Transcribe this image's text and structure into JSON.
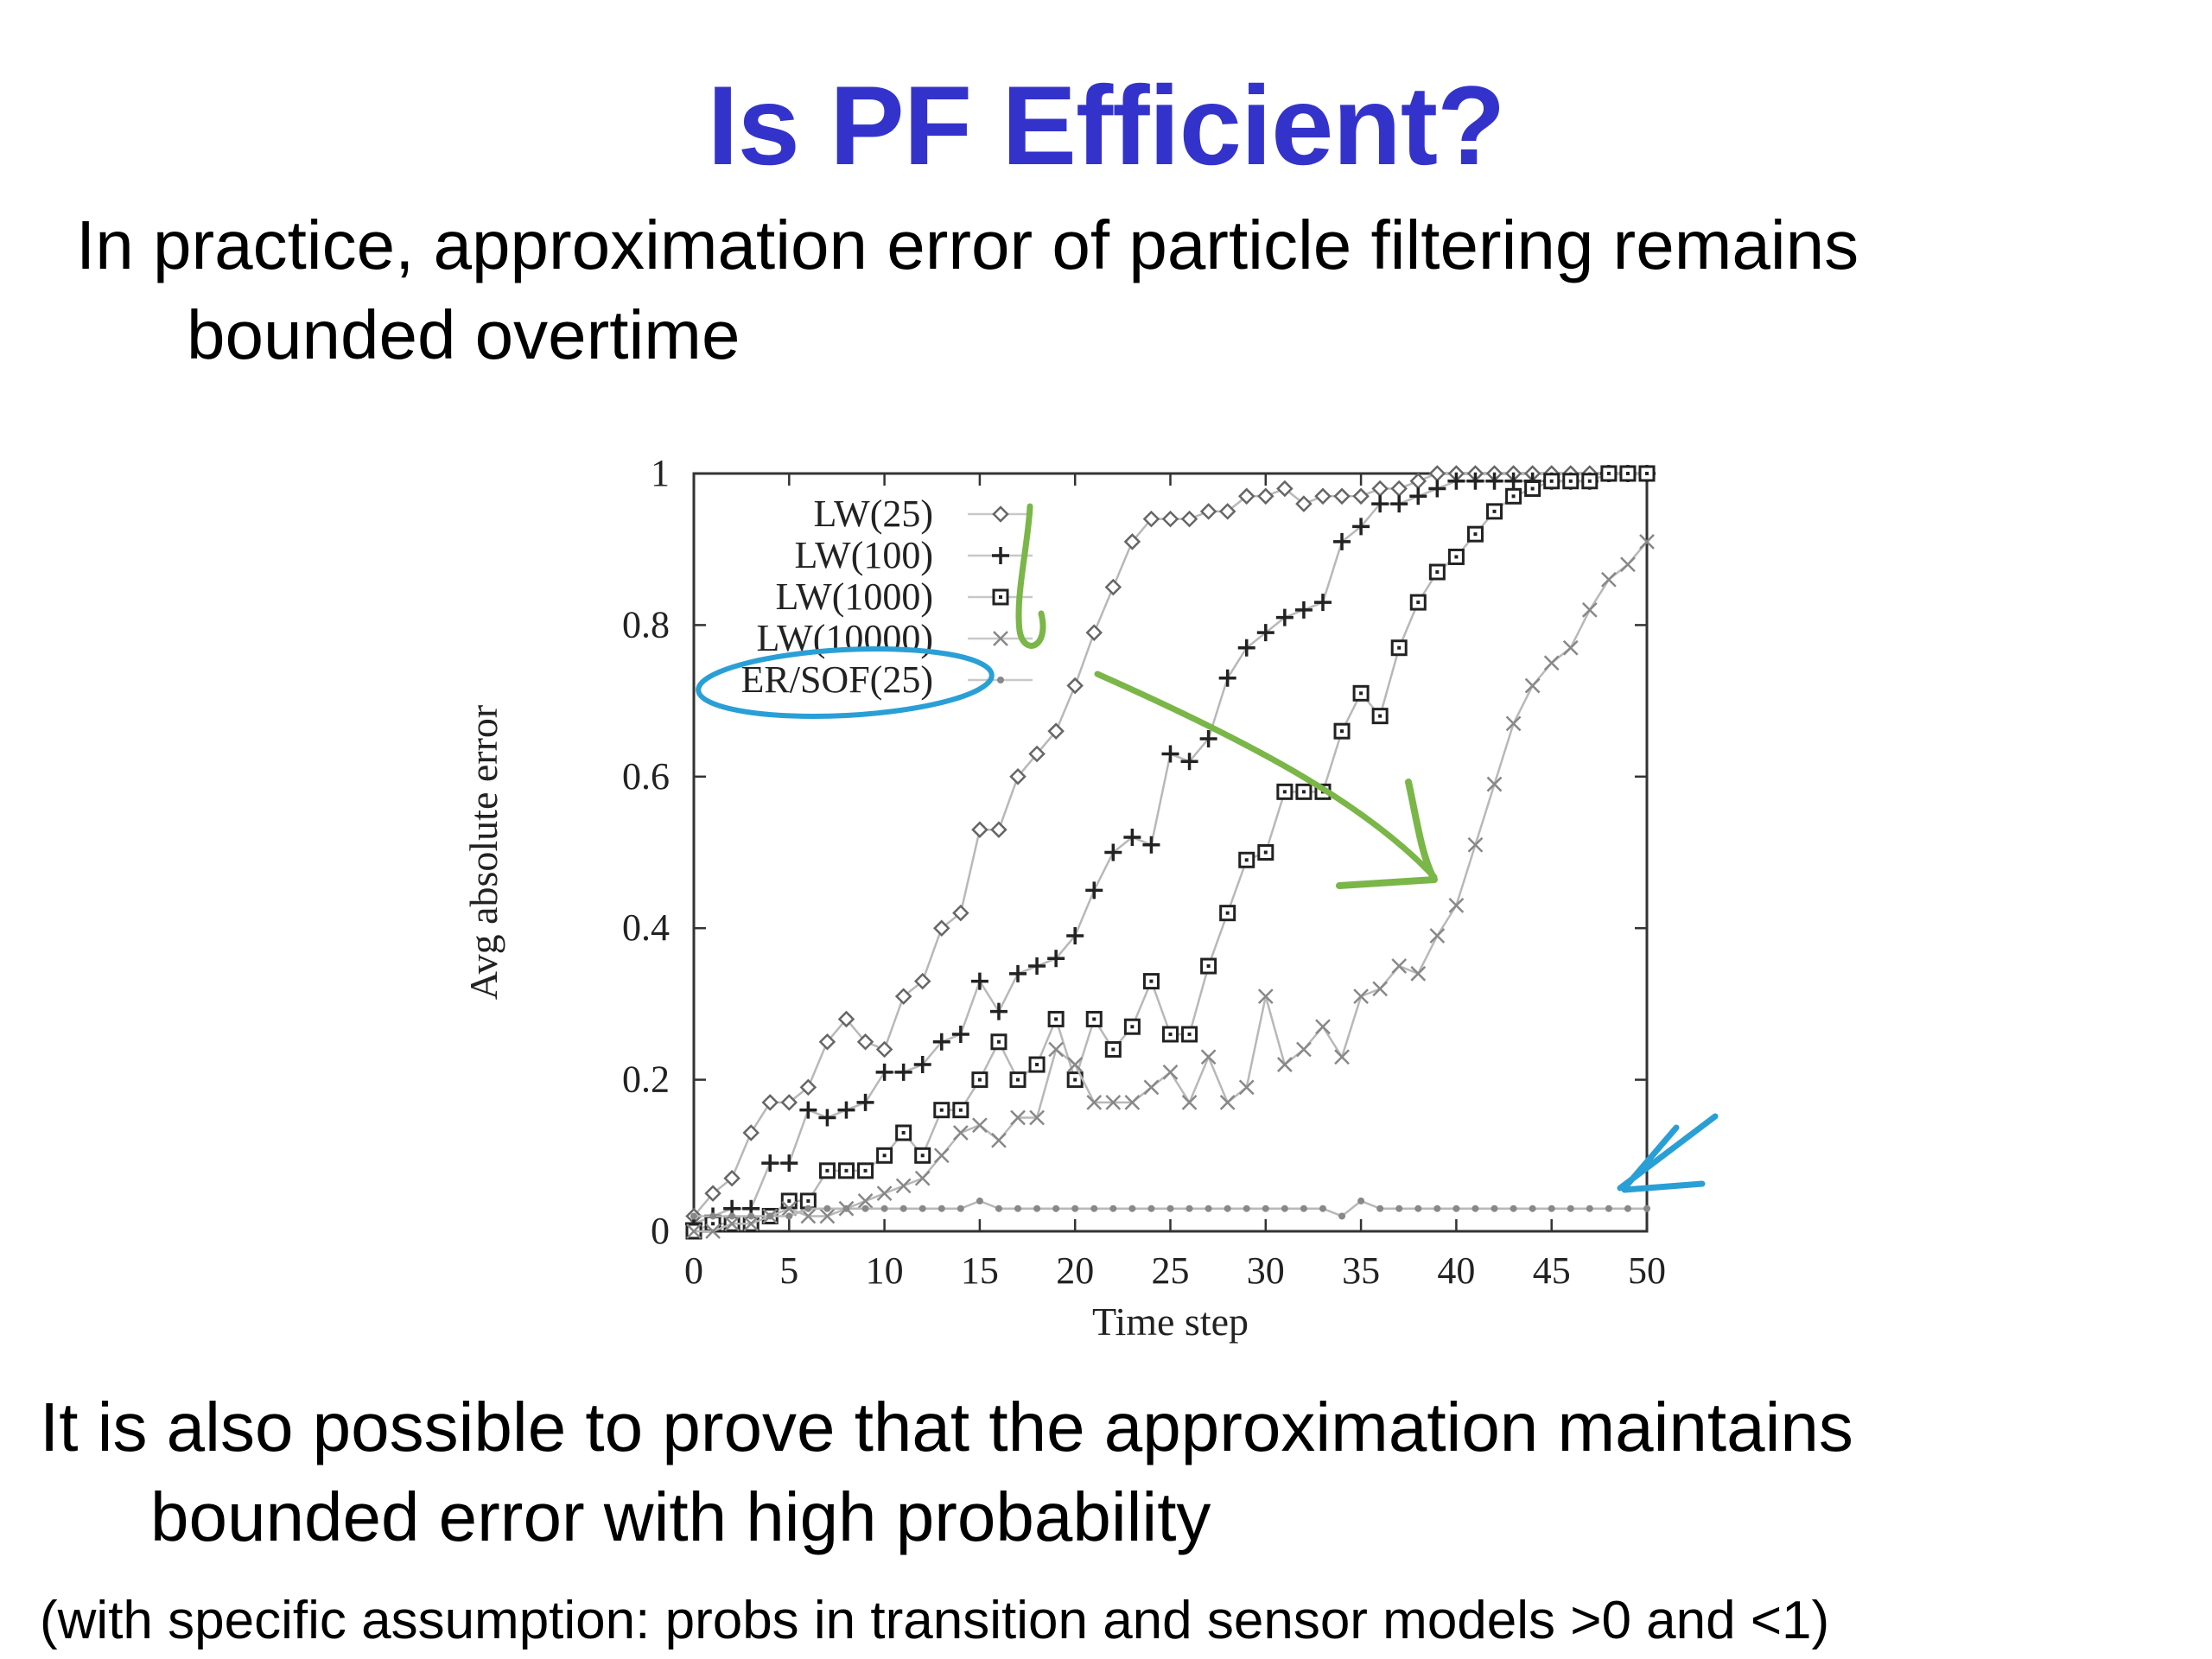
{
  "title": "Is PF Efficient?",
  "bullets": [
    {
      "line1": "In practice, approximation error of particle filtering remains",
      "line2": "bounded overtime"
    },
    {
      "line1": "It is also possible to prove that the approximation maintains",
      "line2": "bounded error with high probability"
    }
  ],
  "note": "(with specific assumption: probs in transition and sensor models >0 and <1)",
  "chart_data": {
    "type": "line",
    "xlabel": "Time step",
    "ylabel": "Avg absolute error",
    "xlim": [
      0,
      50
    ],
    "ylim": [
      0,
      1
    ],
    "xticks": [
      0,
      5,
      10,
      15,
      20,
      25,
      30,
      35,
      40,
      45,
      50
    ],
    "yticks": [
      0,
      0.2,
      0.4,
      0.6,
      0.8,
      1
    ],
    "ytick_labels": [
      "0",
      "0.2",
      "0.4",
      "0.6",
      "0.8",
      "1"
    ],
    "grid": false,
    "legend_position": "top-left",
    "x": [
      0,
      1,
      2,
      3,
      4,
      5,
      6,
      7,
      8,
      9,
      10,
      11,
      12,
      13,
      14,
      15,
      16,
      17,
      18,
      19,
      20,
      21,
      22,
      23,
      24,
      25,
      26,
      27,
      28,
      29,
      30,
      31,
      32,
      33,
      34,
      35,
      36,
      37,
      38,
      39,
      40,
      41,
      42,
      43,
      44,
      45,
      46,
      47,
      48,
      49,
      50
    ],
    "series": [
      {
        "name": "LW(25)",
        "marker": "diamond",
        "values": [
          0.02,
          0.05,
          0.07,
          0.13,
          0.17,
          0.17,
          0.19,
          0.25,
          0.28,
          0.25,
          0.24,
          0.31,
          0.33,
          0.4,
          0.42,
          0.53,
          0.53,
          0.6,
          0.63,
          0.66,
          0.72,
          0.79,
          0.85,
          0.91,
          0.94,
          0.94,
          0.94,
          0.95,
          0.95,
          0.97,
          0.97,
          0.98,
          0.96,
          0.97,
          0.97,
          0.97,
          0.98,
          0.98,
          0.99,
          1.0,
          1.0,
          1.0,
          1.0,
          1.0,
          1.0,
          1.0,
          1.0,
          1.0,
          1.0,
          1.0,
          1.0
        ]
      },
      {
        "name": "LW(100)",
        "marker": "plus",
        "values": [
          0.01,
          0.02,
          0.03,
          0.03,
          0.09,
          0.09,
          0.16,
          0.15,
          0.16,
          0.17,
          0.21,
          0.21,
          0.22,
          0.25,
          0.26,
          0.33,
          0.29,
          0.34,
          0.35,
          0.36,
          0.39,
          0.45,
          0.5,
          0.52,
          0.51,
          0.63,
          0.62,
          0.65,
          0.73,
          0.77,
          0.79,
          0.81,
          0.82,
          0.83,
          0.91,
          0.93,
          0.96,
          0.96,
          0.97,
          0.98,
          0.99,
          0.99,
          0.99,
          0.99,
          0.99,
          0.99,
          0.99,
          0.99,
          1.0,
          1.0,
          1.0
        ]
      },
      {
        "name": "LW(1000)",
        "marker": "square",
        "values": [
          0.0,
          0.01,
          0.01,
          0.01,
          0.02,
          0.04,
          0.04,
          0.08,
          0.08,
          0.08,
          0.1,
          0.13,
          0.1,
          0.16,
          0.16,
          0.2,
          0.25,
          0.2,
          0.22,
          0.28,
          0.2,
          0.28,
          0.24,
          0.27,
          0.33,
          0.26,
          0.26,
          0.35,
          0.42,
          0.49,
          0.5,
          0.58,
          0.58,
          0.58,
          0.66,
          0.71,
          0.68,
          0.77,
          0.83,
          0.87,
          0.89,
          0.92,
          0.95,
          0.97,
          0.98,
          0.99,
          0.99,
          0.99,
          1.0,
          1.0,
          1.0
        ]
      },
      {
        "name": "LW(10000)",
        "marker": "cross",
        "values": [
          0.0,
          0.0,
          0.01,
          0.01,
          0.02,
          0.03,
          0.02,
          0.02,
          0.03,
          0.04,
          0.05,
          0.06,
          0.07,
          0.1,
          0.13,
          0.14,
          0.12,
          0.15,
          0.15,
          0.24,
          0.22,
          0.17,
          0.17,
          0.17,
          0.19,
          0.21,
          0.17,
          0.23,
          0.17,
          0.19,
          0.31,
          0.22,
          0.24,
          0.27,
          0.23,
          0.31,
          0.32,
          0.35,
          0.34,
          0.39,
          0.43,
          0.51,
          0.59,
          0.67,
          0.72,
          0.75,
          0.77,
          0.82,
          0.86,
          0.88,
          0.91
        ]
      },
      {
        "name": "ER/SOF(25)",
        "marker": "dot",
        "values": [
          0.02,
          0.02,
          0.02,
          0.02,
          0.02,
          0.02,
          0.03,
          0.03,
          0.03,
          0.03,
          0.03,
          0.03,
          0.03,
          0.03,
          0.03,
          0.04,
          0.03,
          0.03,
          0.03,
          0.03,
          0.03,
          0.03,
          0.03,
          0.03,
          0.03,
          0.03,
          0.03,
          0.03,
          0.03,
          0.03,
          0.03,
          0.03,
          0.03,
          0.03,
          0.02,
          0.04,
          0.03,
          0.03,
          0.03,
          0.03,
          0.03,
          0.03,
          0.03,
          0.03,
          0.03,
          0.03,
          0.03,
          0.03,
          0.03,
          0.03,
          0.03
        ]
      }
    ]
  },
  "colors": {
    "title": "#3333cc",
    "annotation_green": "#7ab648",
    "annotation_blue": "#2a9fd6",
    "series_line": "#b0b0b0",
    "marker": "#222222"
  }
}
